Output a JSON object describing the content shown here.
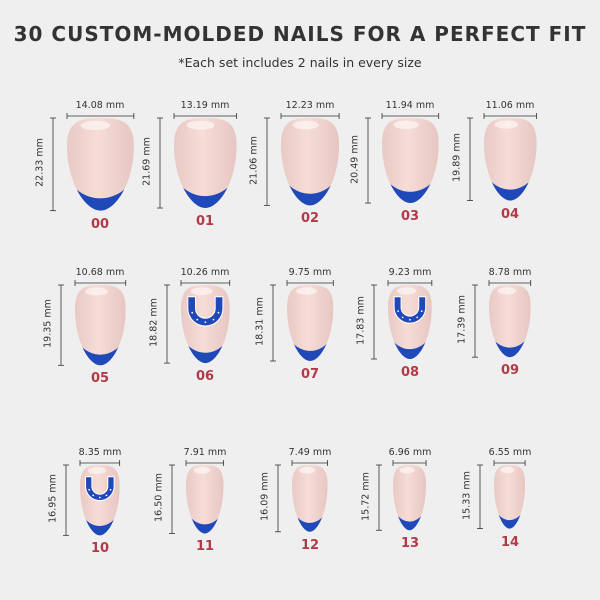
{
  "title": "30 CUSTOM-MOLDED NAILS FOR A PERFECT FIT",
  "subtitle": "*Each set includes 2 nails in every size",
  "colors": {
    "tip": "#1f49b8",
    "base": "#f6dcd7",
    "label": "#b23a48",
    "logo": "#1f49b8"
  },
  "nails": [
    {
      "id": "00",
      "width": "14.08 mm",
      "length": "22.33 mm",
      "logo": false
    },
    {
      "id": "01",
      "width": "13.19 mm",
      "length": "21.69 mm",
      "logo": false
    },
    {
      "id": "02",
      "width": "12.23 mm",
      "length": "21.06 mm",
      "logo": false
    },
    {
      "id": "03",
      "width": "11.94 mm",
      "length": "20.49 mm",
      "logo": false
    },
    {
      "id": "04",
      "width": "11.06 mm",
      "length": "19.89 mm",
      "logo": false
    },
    {
      "id": "05",
      "width": "10.68 mm",
      "length": "19.35 mm",
      "logo": false
    },
    {
      "id": "06",
      "width": "10.26 mm",
      "length": "18.82 mm",
      "logo": true
    },
    {
      "id": "07",
      "width": "9.75 mm",
      "length": "18.31 mm",
      "logo": false
    },
    {
      "id": "08",
      "width": "9.23 mm",
      "length": "17.83 mm",
      "logo": true
    },
    {
      "id": "09",
      "width": "8.78 mm",
      "length": "17.39 mm",
      "logo": false
    },
    {
      "id": "10",
      "width": "8.35 mm",
      "length": "16.95 mm",
      "logo": true
    },
    {
      "id": "11",
      "width": "7.91 mm",
      "length": "16.50 mm",
      "logo": false
    },
    {
      "id": "12",
      "width": "7.49 mm",
      "length": "16.09 mm",
      "logo": false
    },
    {
      "id": "13",
      "width": "6.96 mm",
      "length": "15.72 mm",
      "logo": false
    },
    {
      "id": "14",
      "width": "6.55 mm",
      "length": "15.33 mm",
      "logo": false
    }
  ]
}
